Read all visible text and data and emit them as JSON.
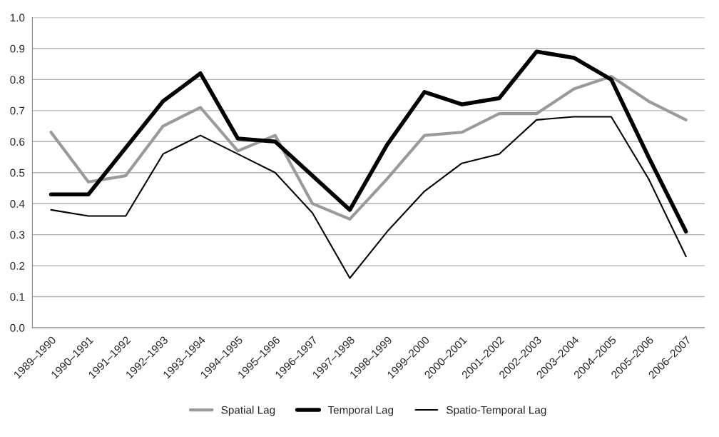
{
  "chart_data": {
    "type": "line",
    "categories": [
      "1989–1990",
      "1990–1991",
      "1991–1992",
      "1992–1993",
      "1993–1994",
      "1994–1995",
      "1995–1996",
      "1996–1997",
      "1997–1998",
      "1998–1999",
      "1999–2000",
      "2000–2001",
      "2001–2002",
      "2002–2003",
      "2003–2004",
      "2004–2005",
      "2005–2006",
      "2006–2007"
    ],
    "series": [
      {
        "name": "Spatial Lag",
        "color": "#9a9a9a",
        "values": [
          0.63,
          0.47,
          0.49,
          0.65,
          0.71,
          0.57,
          0.62,
          0.4,
          0.35,
          0.48,
          0.62,
          0.63,
          0.69,
          0.69,
          0.77,
          0.81,
          0.73,
          0.67
        ]
      },
      {
        "name": "Temporal Lag",
        "color": "#000000",
        "values": [
          0.43,
          0.43,
          0.58,
          0.73,
          0.82,
          0.61,
          0.6,
          0.49,
          0.38,
          0.59,
          0.76,
          0.72,
          0.74,
          0.89,
          0.87,
          0.8,
          0.55,
          0.31
        ]
      },
      {
        "name": "Spatio-Temporal Lag",
        "color": "#000000",
        "values": [
          0.38,
          0.36,
          0.36,
          0.56,
          0.62,
          0.56,
          0.5,
          0.37,
          0.16,
          0.31,
          0.44,
          0.53,
          0.56,
          0.67,
          0.68,
          0.68,
          0.48,
          0.23
        ]
      }
    ],
    "ylim": [
      0,
      1
    ],
    "yticks": [
      {
        "value": 0,
        "label": "0.0"
      },
      0.1,
      0.2,
      0.3,
      0.4,
      0.5,
      0.6,
      0.7,
      0.8,
      0.9,
      {
        "value": 1,
        "label": "1.0"
      }
    ],
    "grid": "y",
    "legend": "bottom",
    "line_style": "solid",
    "marker": "none"
  }
}
